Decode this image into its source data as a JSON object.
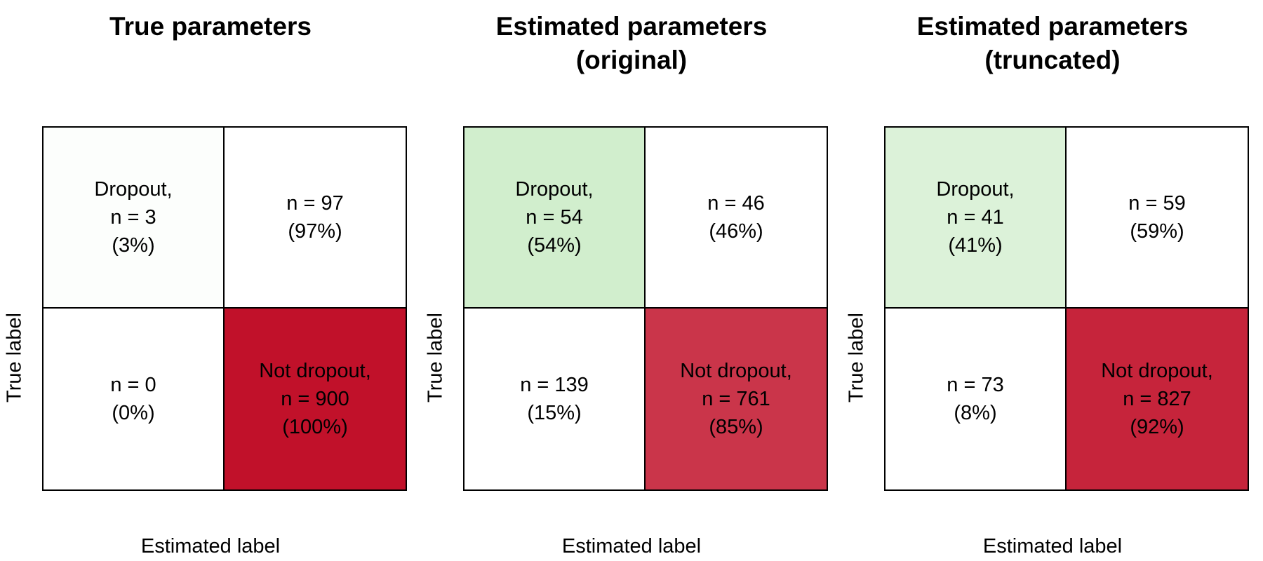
{
  "colors": {
    "correct_dropout": "#a9dfa2",
    "correct_not_dropout": "#c1112a",
    "off_diagonal": "#ffffff"
  },
  "chart_data": [
    {
      "type": "heatmap",
      "title": [
        "True parameters"
      ],
      "xlabel": "Estimated label",
      "ylabel": "True label",
      "cells": [
        [
          {
            "lines": [
              "Dropout,",
              "n = 3",
              "(3%)"
            ],
            "count": 3,
            "percent": 3
          },
          {
            "lines": [
              "n = 97",
              "(97%)"
            ],
            "count": 97,
            "percent": 97
          }
        ],
        [
          {
            "lines": [
              "n = 0",
              "(0%)"
            ],
            "count": 0,
            "percent": 0
          },
          {
            "lines": [
              "Not dropout,",
              "n = 900",
              "(100%)"
            ],
            "count": 900,
            "percent": 100
          }
        ]
      ]
    },
    {
      "type": "heatmap",
      "title": [
        "Estimated parameters",
        "(original)"
      ],
      "xlabel": "Estimated label",
      "ylabel": "True label",
      "cells": [
        [
          {
            "lines": [
              "Dropout,",
              "n = 54",
              "(54%)"
            ],
            "count": 54,
            "percent": 54
          },
          {
            "lines": [
              "n = 46",
              "(46%)"
            ],
            "count": 46,
            "percent": 46
          }
        ],
        [
          {
            "lines": [
              "n = 139",
              "(15%)"
            ],
            "count": 139,
            "percent": 15
          },
          {
            "lines": [
              "Not dropout,",
              "n = 761",
              "(85%)"
            ],
            "count": 761,
            "percent": 85
          }
        ]
      ]
    },
    {
      "type": "heatmap",
      "title": [
        "Estimated parameters",
        "(truncated)"
      ],
      "xlabel": "Estimated label",
      "ylabel": "True label",
      "cells": [
        [
          {
            "lines": [
              "Dropout,",
              "n = 41",
              "(41%)"
            ],
            "count": 41,
            "percent": 41
          },
          {
            "lines": [
              "n = 59",
              "(59%)"
            ],
            "count": 59,
            "percent": 59
          }
        ],
        [
          {
            "lines": [
              "n = 73",
              "(8%)"
            ],
            "count": 73,
            "percent": 8
          },
          {
            "lines": [
              "Not dropout,",
              "n = 827",
              "(92%)"
            ],
            "count": 827,
            "percent": 92
          }
        ]
      ]
    }
  ]
}
